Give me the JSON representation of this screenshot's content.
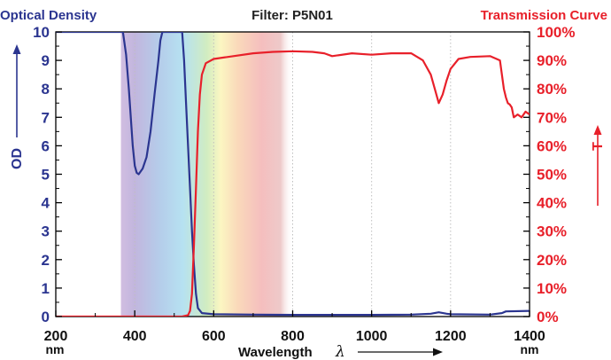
{
  "chart_data": {
    "type": "line",
    "title": "Filter: P5N01",
    "left_axis_title": "Optical Density",
    "right_axis_title": "Transmission Curve",
    "ylabel_left": "OD",
    "ylabel_right": "T",
    "xlabel": "Wavelength",
    "xlabel_symbol": "λ",
    "x_unit": "nm",
    "xlim": [
      200,
      1400
    ],
    "ylim_left": [
      0,
      10
    ],
    "ylim_right": [
      0,
      100
    ],
    "x_ticks": [
      "200",
      "400",
      "600",
      "800",
      "1000",
      "1200",
      "1400"
    ],
    "y_ticks_left": [
      "0",
      "1",
      "2",
      "3",
      "4",
      "5",
      "6",
      "7",
      "8",
      "9",
      "10"
    ],
    "y_ticks_right": [
      "0%",
      "10%",
      "20%",
      "30%",
      "40%",
      "50%",
      "60%",
      "70%",
      "80%",
      "90%",
      "100%"
    ],
    "grid": "vertical dotted",
    "colors": {
      "od": "#2b3590",
      "transmission": "#e8202a",
      "axis_left": "#2b3590",
      "axis_right": "#e8202a"
    },
    "series": [
      {
        "axis": "left",
        "x": [
          200,
          370,
          378,
          385,
          390,
          395,
          400,
          405,
          410,
          420,
          430,
          440,
          450,
          460,
          465,
          470,
          520,
          525,
          530,
          540,
          545,
          550,
          555,
          560,
          570,
          600,
          700,
          800,
          900,
          1000,
          1100,
          1150,
          1170,
          1190,
          1200,
          1300,
          1330,
          1340,
          1400
        ],
        "y": [
          10,
          10,
          9.2,
          8.0,
          7.0,
          6.0,
          5.3,
          5.05,
          5.0,
          5.2,
          5.6,
          6.5,
          7.8,
          9.0,
          9.7,
          10,
          10,
          9.0,
          7.5,
          4.5,
          3.0,
          1.8,
          0.8,
          0.3,
          0.12,
          0.08,
          0.07,
          0.06,
          0.06,
          0.06,
          0.07,
          0.1,
          0.15,
          0.1,
          0.08,
          0.07,
          0.12,
          0.18,
          0.2
        ]
      },
      {
        "axis": "right",
        "x": [
          200,
          520,
          535,
          540,
          545,
          550,
          555,
          560,
          565,
          570,
          580,
          600,
          650,
          700,
          750,
          800,
          850,
          880,
          900,
          950,
          1000,
          1050,
          1100,
          1130,
          1150,
          1160,
          1170,
          1180,
          1190,
          1200,
          1220,
          1250,
          1300,
          1325,
          1330,
          1335,
          1340,
          1345,
          1350,
          1355,
          1360,
          1370,
          1380,
          1390,
          1400
        ],
        "y": [
          0,
          0,
          0.5,
          2,
          8,
          25,
          45,
          65,
          78,
          85,
          89,
          90.5,
          91.5,
          92.5,
          93,
          93.2,
          93,
          92.5,
          91.5,
          92.5,
          92,
          92.5,
          92.5,
          90,
          85,
          80,
          75,
          78,
          83,
          87,
          90.5,
          91.2,
          91.5,
          90,
          85,
          80,
          77,
          75,
          74.5,
          73.5,
          70,
          71,
          70,
          72,
          71
        ]
      }
    ]
  }
}
